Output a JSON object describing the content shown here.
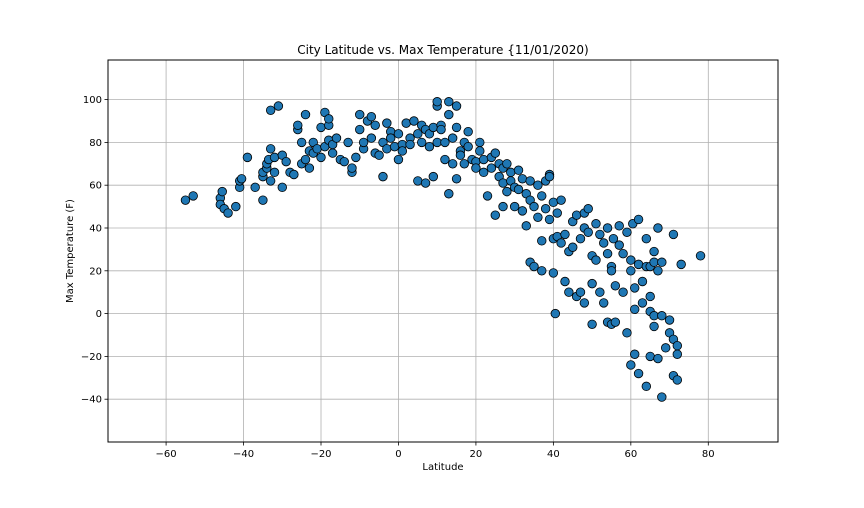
{
  "chart_data": {
    "type": "scatter",
    "title": "City Latitude vs. Max Temperature {11/01/2020)",
    "xlabel": "Latitude",
    "ylabel": "Max Temperature (F)",
    "xlim": [
      -75,
      98
    ],
    "ylim": [
      -60,
      118.5
    ],
    "xticks": [
      -60,
      -40,
      -20,
      0,
      20,
      40,
      60,
      80
    ],
    "yticks": [
      -40,
      -20,
      0,
      20,
      40,
      60,
      80,
      100
    ],
    "grid": true,
    "marker_color": "#1f77b4",
    "edge_color": "#000000",
    "points": [
      [
        -55,
        53
      ],
      [
        -53,
        55
      ],
      [
        -46,
        54
      ],
      [
        -46,
        51
      ],
      [
        -45.5,
        57
      ],
      [
        -45,
        49
      ],
      [
        -44,
        47
      ],
      [
        -42,
        50
      ],
      [
        -41,
        59
      ],
      [
        -41,
        62
      ],
      [
        -40.5,
        63
      ],
      [
        -39,
        73
      ],
      [
        -37,
        59
      ],
      [
        -35,
        53
      ],
      [
        -35,
        64
      ],
      [
        -35,
        66
      ],
      [
        -34,
        68
      ],
      [
        -34,
        70
      ],
      [
        -33.5,
        72
      ],
      [
        -33,
        77
      ],
      [
        -33,
        62
      ],
      [
        -33,
        95
      ],
      [
        -32,
        66
      ],
      [
        -32,
        73
      ],
      [
        -31,
        97
      ],
      [
        -30,
        59
      ],
      [
        -30,
        74
      ],
      [
        -29,
        71
      ],
      [
        -28,
        66
      ],
      [
        -27,
        65
      ],
      [
        -26,
        86
      ],
      [
        -26,
        88
      ],
      [
        -25,
        70
      ],
      [
        -25,
        80
      ],
      [
        -24,
        72
      ],
      [
        -24,
        93
      ],
      [
        -23,
        76
      ],
      [
        -23,
        68
      ],
      [
        -22,
        75
      ],
      [
        -22,
        80
      ],
      [
        -21,
        77
      ],
      [
        -20,
        87
      ],
      [
        -20,
        73
      ],
      [
        -19,
        94
      ],
      [
        -19,
        78
      ],
      [
        -18,
        88
      ],
      [
        -18,
        91
      ],
      [
        -18,
        81
      ],
      [
        -17,
        75
      ],
      [
        -17,
        79
      ],
      [
        -16,
        82
      ],
      [
        -15,
        72
      ],
      [
        -14,
        71
      ],
      [
        -13,
        80
      ],
      [
        -12,
        66
      ],
      [
        -12,
        68
      ],
      [
        -11,
        73
      ],
      [
        -10,
        93
      ],
      [
        -10,
        86
      ],
      [
        -9,
        77
      ],
      [
        -9,
        80
      ],
      [
        -8,
        90
      ],
      [
        -7,
        92
      ],
      [
        -7,
        82
      ],
      [
        -6,
        75
      ],
      [
        -6,
        88
      ],
      [
        -5,
        74
      ],
      [
        -4,
        64
      ],
      [
        -4,
        80
      ],
      [
        -3,
        89
      ],
      [
        -3,
        77
      ],
      [
        -2,
        85
      ],
      [
        -2,
        82
      ],
      [
        -1,
        78
      ],
      [
        0,
        72
      ],
      [
        0,
        84
      ],
      [
        1,
        79
      ],
      [
        1,
        76
      ],
      [
        2,
        89
      ],
      [
        3,
        82
      ],
      [
        3,
        79
      ],
      [
        4,
        90
      ],
      [
        5,
        62
      ],
      [
        5,
        84
      ],
      [
        6,
        88
      ],
      [
        6,
        80
      ],
      [
        7,
        86
      ],
      [
        7,
        61
      ],
      [
        8,
        84
      ],
      [
        8,
        78
      ],
      [
        9,
        64
      ],
      [
        9,
        87
      ],
      [
        10,
        97
      ],
      [
        10,
        99
      ],
      [
        10,
        80
      ],
      [
        11,
        88
      ],
      [
        11,
        86
      ],
      [
        12,
        72
      ],
      [
        12,
        80
      ],
      [
        13,
        99
      ],
      [
        13,
        93
      ],
      [
        13,
        56
      ],
      [
        14,
        82
      ],
      [
        14,
        70
      ],
      [
        15,
        97
      ],
      [
        15,
        63
      ],
      [
        15,
        87
      ],
      [
        16,
        76
      ],
      [
        16,
        74
      ],
      [
        17,
        80
      ],
      [
        17,
        70
      ],
      [
        18,
        85
      ],
      [
        18,
        78
      ],
      [
        19,
        72
      ],
      [
        20,
        71
      ],
      [
        20,
        68
      ],
      [
        21,
        80
      ],
      [
        21,
        76
      ],
      [
        22,
        72
      ],
      [
        22,
        66
      ],
      [
        23,
        55
      ],
      [
        24,
        68
      ],
      [
        24,
        73
      ],
      [
        25,
        75
      ],
      [
        25,
        46
      ],
      [
        26,
        64
      ],
      [
        26,
        70
      ],
      [
        27,
        68
      ],
      [
        27,
        50
      ],
      [
        27,
        61
      ],
      [
        28,
        70
      ],
      [
        28,
        57
      ],
      [
        29,
        66
      ],
      [
        29,
        62
      ],
      [
        30,
        59
      ],
      [
        30,
        50
      ],
      [
        31,
        67
      ],
      [
        31,
        58
      ],
      [
        32,
        63
      ],
      [
        32,
        48
      ],
      [
        33,
        56
      ],
      [
        33,
        41
      ],
      [
        34,
        62
      ],
      [
        34,
        53
      ],
      [
        34,
        24
      ],
      [
        35,
        22
      ],
      [
        35,
        50
      ],
      [
        36,
        60
      ],
      [
        36,
        45
      ],
      [
        37,
        55
      ],
      [
        37,
        34
      ],
      [
        37,
        20
      ],
      [
        38,
        49
      ],
      [
        38,
        62
      ],
      [
        39,
        65
      ],
      [
        39,
        44
      ],
      [
        39,
        64
      ],
      [
        40,
        52
      ],
      [
        40,
        35
      ],
      [
        40,
        19
      ],
      [
        40.5,
        0
      ],
      [
        41,
        36
      ],
      [
        41,
        47
      ],
      [
        42,
        53
      ],
      [
        42,
        33
      ],
      [
        43,
        37
      ],
      [
        43,
        15
      ],
      [
        44,
        29
      ],
      [
        44,
        10
      ],
      [
        45,
        43
      ],
      [
        45,
        31
      ],
      [
        46,
        46
      ],
      [
        46,
        8
      ],
      [
        47,
        35
      ],
      [
        47,
        10
      ],
      [
        48,
        47
      ],
      [
        48,
        5
      ],
      [
        48,
        40
      ],
      [
        49,
        49
      ],
      [
        49,
        38
      ],
      [
        50,
        27
      ],
      [
        50,
        14
      ],
      [
        50,
        -5
      ],
      [
        51,
        25
      ],
      [
        51,
        42
      ],
      [
        52,
        37
      ],
      [
        52,
        10
      ],
      [
        53,
        5
      ],
      [
        53,
        33
      ],
      [
        54,
        28
      ],
      [
        54,
        40
      ],
      [
        54,
        -4
      ],
      [
        55,
        22
      ],
      [
        55,
        20
      ],
      [
        55,
        -5
      ],
      [
        55.5,
        35
      ],
      [
        56,
        13
      ],
      [
        56,
        -4
      ],
      [
        57,
        32
      ],
      [
        57,
        41
      ],
      [
        58,
        10
      ],
      [
        58,
        28
      ],
      [
        59,
        -9
      ],
      [
        59,
        38
      ],
      [
        60,
        25
      ],
      [
        60,
        20
      ],
      [
        60,
        -24
      ],
      [
        60.5,
        42
      ],
      [
        61,
        -19
      ],
      [
        61,
        2
      ],
      [
        61,
        12
      ],
      [
        62,
        -28
      ],
      [
        62,
        44
      ],
      [
        62,
        23
      ],
      [
        63,
        15
      ],
      [
        63,
        5
      ],
      [
        64,
        35
      ],
      [
        64,
        -34
      ],
      [
        64,
        22
      ],
      [
        65,
        22
      ],
      [
        65,
        1
      ],
      [
        65,
        -20
      ],
      [
        65,
        8
      ],
      [
        66,
        29
      ],
      [
        66,
        -1
      ],
      [
        66,
        24
      ],
      [
        66,
        -6
      ],
      [
        67,
        -21
      ],
      [
        67,
        20
      ],
      [
        67,
        40
      ],
      [
        68,
        -39
      ],
      [
        68,
        -1
      ],
      [
        68,
        24
      ],
      [
        69,
        -16
      ],
      [
        70,
        -9
      ],
      [
        70,
        -3
      ],
      [
        71,
        -29
      ],
      [
        71,
        37
      ],
      [
        71,
        -12
      ],
      [
        72,
        -31
      ],
      [
        72,
        -15
      ],
      [
        72,
        -19
      ],
      [
        73,
        23
      ],
      [
        78,
        27
      ]
    ]
  }
}
